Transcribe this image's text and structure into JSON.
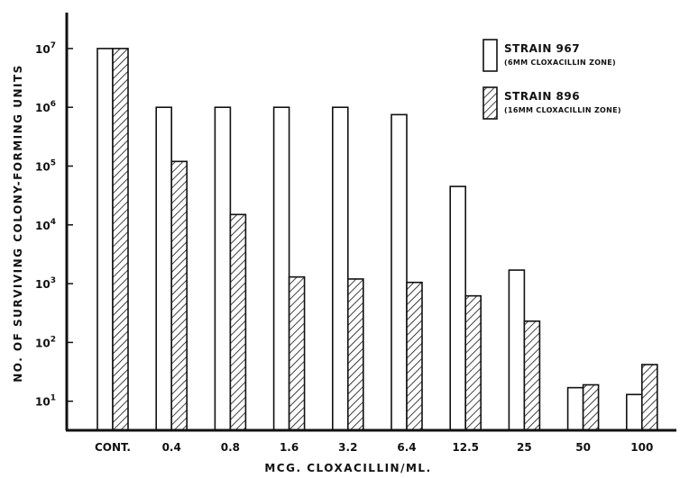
{
  "chart_data": {
    "type": "bar",
    "ylabel": "NO. OF SURVIVING COLONY-FORMING UNITS",
    "xlabel": "MCG. CLOXACILLIN/ML.",
    "y_scale": "log",
    "ylim": [
      1,
      100000000
    ],
    "categories": [
      "CONT.",
      "0.4",
      "0.8",
      "1.6",
      "3.2",
      "6.4",
      "12.5",
      "25",
      "50",
      "100"
    ],
    "y_ticks": [
      {
        "value": 10,
        "base": "10",
        "exp": "1"
      },
      {
        "value": 100,
        "base": "10",
        "exp": "2"
      },
      {
        "value": 1000,
        "base": "10",
        "exp": "3"
      },
      {
        "value": 10000,
        "base": "10",
        "exp": "4"
      },
      {
        "value": 100000,
        "base": "10",
        "exp": "5"
      },
      {
        "value": 1000000,
        "base": "10",
        "exp": "6"
      },
      {
        "value": 10000000,
        "base": "10",
        "exp": "7"
      }
    ],
    "series": [
      {
        "name": "STRAIN 967",
        "note": "(6MM CLOXACILLIN ZONE)",
        "fill": "open",
        "values": [
          10000000,
          1000000,
          1000000,
          1000000,
          1000000,
          750000,
          45000,
          1700,
          17,
          13
        ]
      },
      {
        "name": "STRAIN 896",
        "note": "(16MM CLOXACILLIN ZONE)",
        "fill": "hatched",
        "values": [
          10000000,
          120000,
          15000,
          1300,
          1200,
          1050,
          620,
          230,
          19,
          42
        ]
      }
    ]
  }
}
